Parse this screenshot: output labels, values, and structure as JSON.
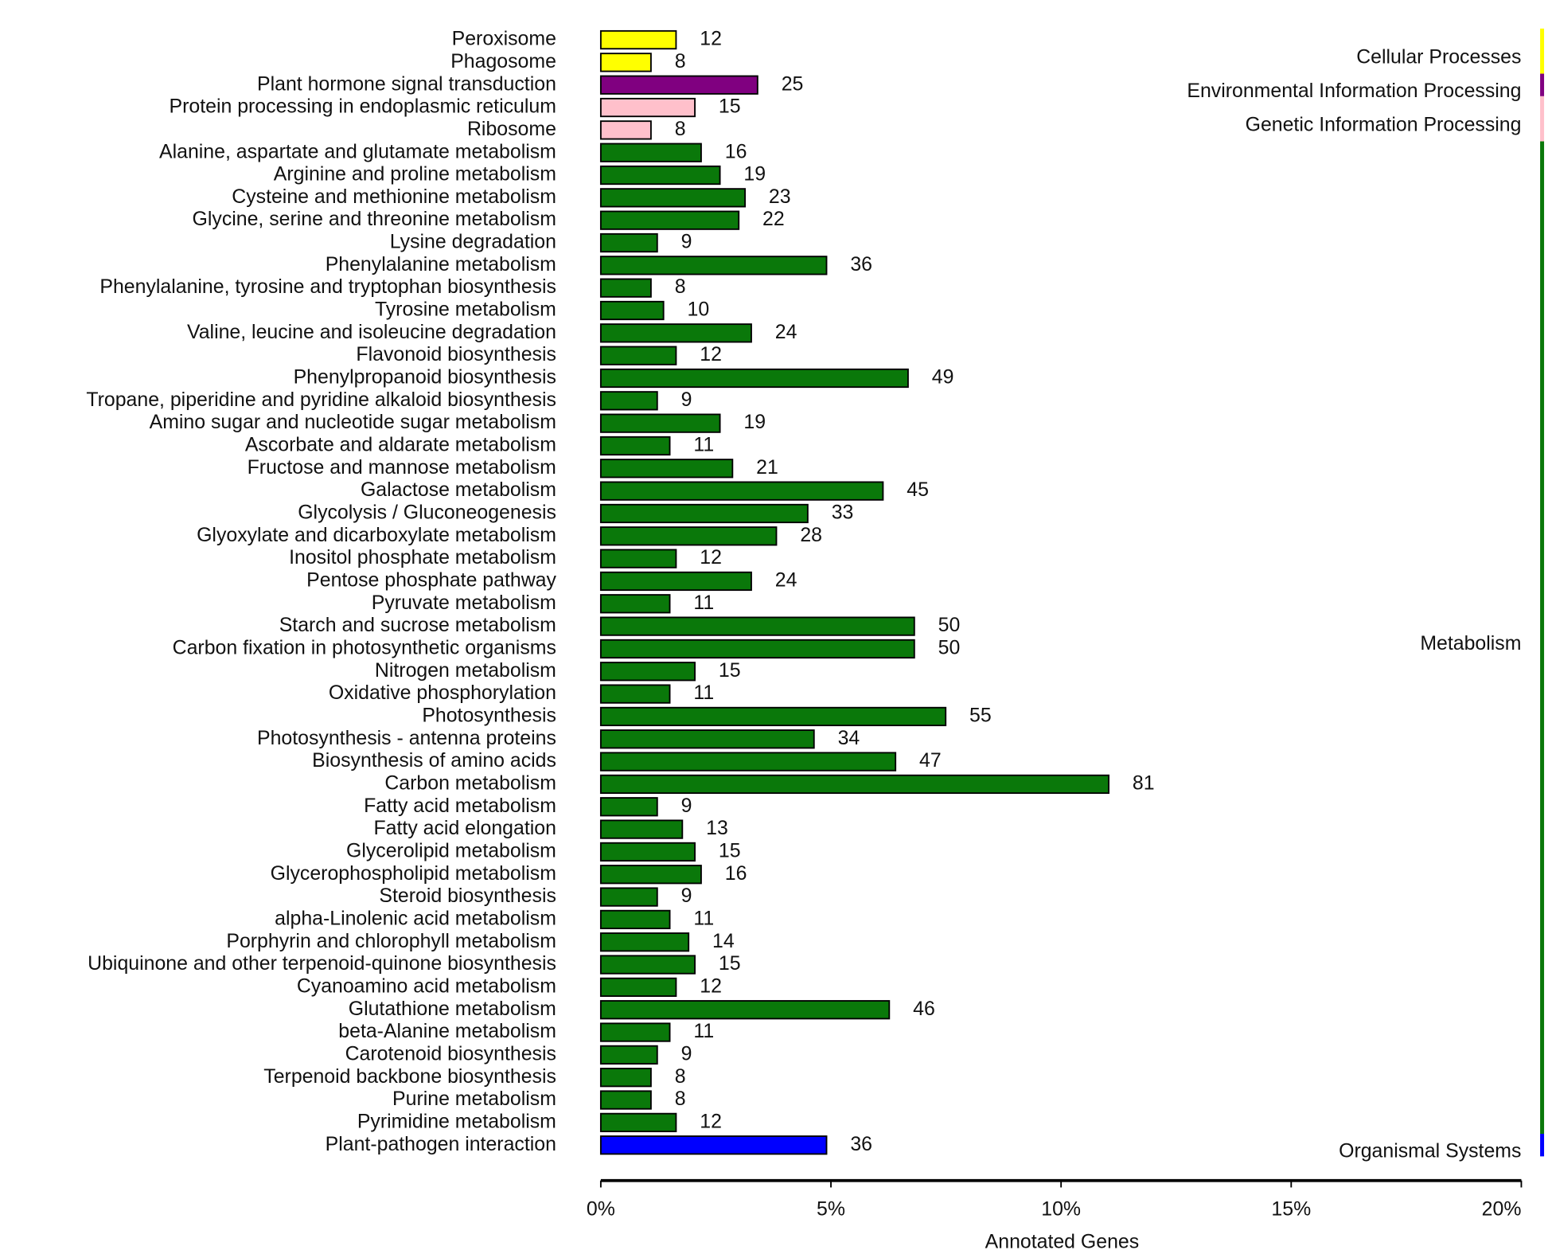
{
  "chart_data": {
    "type": "bar",
    "orientation": "horizontal",
    "xlabel": "Annotated Genes",
    "xlim": [
      0,
      146.8
    ],
    "xticks": [
      {
        "value": 0,
        "label": "0%"
      },
      {
        "value": 36.7,
        "label": "5%"
      },
      {
        "value": 73.4,
        "label": "10%"
      },
      {
        "value": 110.1,
        "label": "15%"
      },
      {
        "value": 146.8,
        "label": "20%"
      }
    ],
    "series": [
      {
        "name": "Cellular Processes",
        "color": "#ffff00",
        "categories": [
          "Peroxisome",
          "Phagosome"
        ],
        "values": [
          12,
          8
        ]
      },
      {
        "name": "Environmental Information Processing",
        "color": "#800080",
        "categories": [
          "Plant hormone signal transduction"
        ],
        "values": [
          25
        ]
      },
      {
        "name": "Genetic Information Processing",
        "color": "#ffc0cb",
        "categories": [
          "Protein processing in endoplasmic reticulum",
          "Ribosome"
        ],
        "values": [
          15,
          8
        ]
      },
      {
        "name": "Metabolism",
        "color": "#0a780a",
        "categories": [
          "Alanine, aspartate and glutamate metabolism",
          "Arginine and proline metabolism",
          "Cysteine and methionine metabolism",
          "Glycine, serine and threonine metabolism",
          "Lysine degradation",
          "Phenylalanine metabolism",
          "Phenylalanine, tyrosine and tryptophan biosynthesis",
          "Tyrosine metabolism",
          "Valine, leucine and isoleucine degradation",
          "Flavonoid biosynthesis",
          "Phenylpropanoid biosynthesis",
          "Tropane, piperidine and pyridine alkaloid biosynthesis",
          "Amino sugar and nucleotide sugar metabolism",
          "Ascorbate and aldarate metabolism",
          "Fructose and mannose metabolism",
          "Galactose metabolism",
          "Glycolysis / Gluconeogenesis",
          "Glyoxylate and dicarboxylate metabolism",
          "Inositol phosphate metabolism",
          "Pentose phosphate pathway",
          "Pyruvate metabolism",
          "Starch and sucrose metabolism",
          "Carbon fixation in photosynthetic organisms",
          "Nitrogen metabolism",
          "Oxidative phosphorylation",
          "Photosynthesis",
          "Photosynthesis - antenna proteins",
          "Biosynthesis of amino acids",
          "Carbon metabolism",
          "Fatty acid metabolism",
          "Fatty acid elongation",
          "Glycerolipid metabolism",
          "Glycerophospholipid metabolism",
          "Steroid biosynthesis",
          "alpha-Linolenic acid metabolism",
          "Porphyrin and chlorophyll metabolism",
          "Ubiquinone and other terpenoid-quinone biosynthesis",
          "Cyanoamino acid metabolism",
          "Glutathione metabolism",
          "beta-Alanine metabolism",
          "Carotenoid biosynthesis",
          "Terpenoid backbone biosynthesis",
          "Purine metabolism",
          "Pyrimidine metabolism"
        ],
        "values": [
          16,
          19,
          23,
          22,
          9,
          36,
          8,
          10,
          24,
          12,
          49,
          9,
          19,
          11,
          21,
          45,
          33,
          28,
          12,
          24,
          11,
          50,
          50,
          15,
          11,
          55,
          34,
          47,
          81,
          9,
          13,
          15,
          16,
          9,
          11,
          14,
          15,
          12,
          46,
          11,
          9,
          8,
          8,
          12
        ]
      },
      {
        "name": "Organismal Systems",
        "color": "#0000ff",
        "categories": [
          "Plant-pathogen interaction"
        ],
        "values": [
          36
        ]
      }
    ]
  }
}
